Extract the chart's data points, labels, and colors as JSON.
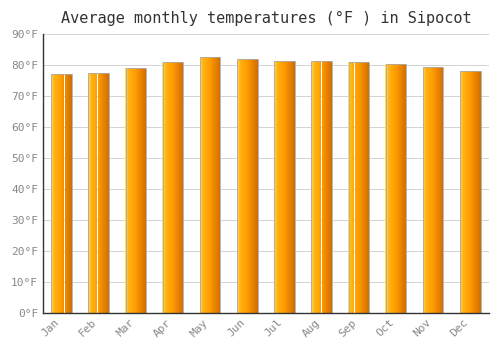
{
  "title": "Average monthly temperatures (°F ) in Sipocot",
  "months": [
    "Jan",
    "Feb",
    "Mar",
    "Apr",
    "May",
    "Jun",
    "Jul",
    "Aug",
    "Sep",
    "Oct",
    "Nov",
    "Dec"
  ],
  "values": [
    77.0,
    77.5,
    79.0,
    81.0,
    82.5,
    82.0,
    81.5,
    81.5,
    81.0,
    80.5,
    79.5,
    78.0
  ],
  "bar_color_left": "#FFD966",
  "bar_color_mid": "#FFA500",
  "bar_color_right": "#E08000",
  "bar_edge_color": "#AAAAAA",
  "background_color": "#FFFFFF",
  "plot_bg_color": "#FFFFFF",
  "grid_color": "#CCCCCC",
  "ylim": [
    0,
    90
  ],
  "yticks": [
    0,
    10,
    20,
    30,
    40,
    50,
    60,
    70,
    80,
    90
  ],
  "title_fontsize": 11,
  "tick_fontsize": 8,
  "tick_color": "#888888",
  "title_color": "#333333",
  "bar_width": 0.55
}
